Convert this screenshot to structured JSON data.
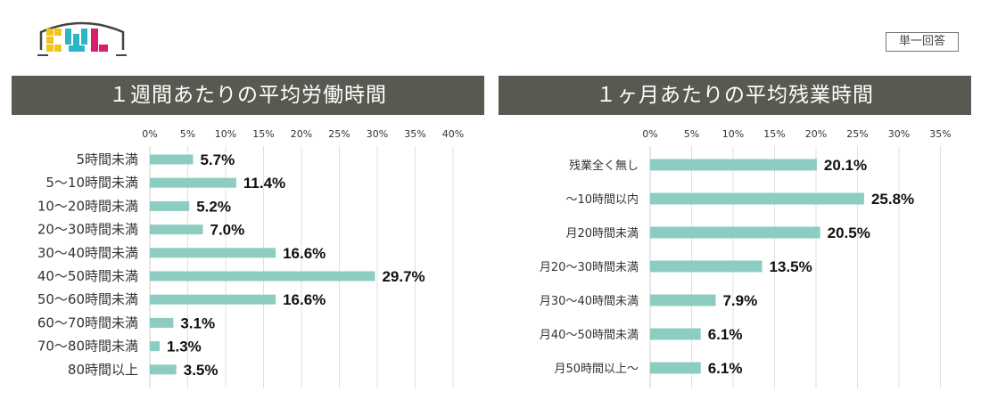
{
  "badge": "単一回答",
  "logo": {
    "text": "CWL",
    "colors": [
      "#f3c51b",
      "#2bb5c9",
      "#d6206f"
    ]
  },
  "chart_data": [
    {
      "type": "bar",
      "orientation": "horizontal",
      "title": "１週間あたりの平均労働時間",
      "categories": [
        "5時間未満",
        "5～10時間未満",
        "10～20時間未満",
        "20～30時間未満",
        "30～40時間未満",
        "40～50時間未満",
        "50～60時間未満",
        "60～70時間未満",
        "70～80時間未満",
        "80時間以上"
      ],
      "values": [
        5.7,
        11.4,
        5.2,
        7.0,
        16.6,
        29.7,
        16.6,
        3.1,
        1.3,
        3.5
      ],
      "value_labels": [
        "5.7%",
        "11.4%",
        "5.2%",
        "7.0%",
        "16.6%",
        "29.7%",
        "16.6%",
        "3.1%",
        "1.3%",
        "3.5%"
      ],
      "xticks": [
        "0%",
        "5%",
        "10%",
        "15%",
        "20%",
        "25%",
        "30%",
        "35%",
        "40%"
      ],
      "xlim": [
        0,
        40
      ],
      "tick_step": 5,
      "bar_color": "#8dcdc1",
      "grid": true
    },
    {
      "type": "bar",
      "orientation": "horizontal",
      "title": "１ヶ月あたりの平均残業時間",
      "categories": [
        "残業全く無し",
        "～10時間以内",
        "月20時間未満",
        "月20～30時間未満",
        "月30～40時間未満",
        "月40～50時間未満",
        "月50時間以上～"
      ],
      "values": [
        20.1,
        25.8,
        20.5,
        13.5,
        7.9,
        6.1,
        6.1
      ],
      "value_labels": [
        "20.1%",
        "25.8%",
        "20.5%",
        "13.5%",
        "7.9%",
        "6.1%",
        "6.1%"
      ],
      "xticks": [
        "0%",
        "5%",
        "10%",
        "15%",
        "20%",
        "25%",
        "30%",
        "35%"
      ],
      "xlim": [
        0,
        35
      ],
      "tick_step": 5,
      "bar_color": "#8dcdc1",
      "grid": true
    }
  ]
}
